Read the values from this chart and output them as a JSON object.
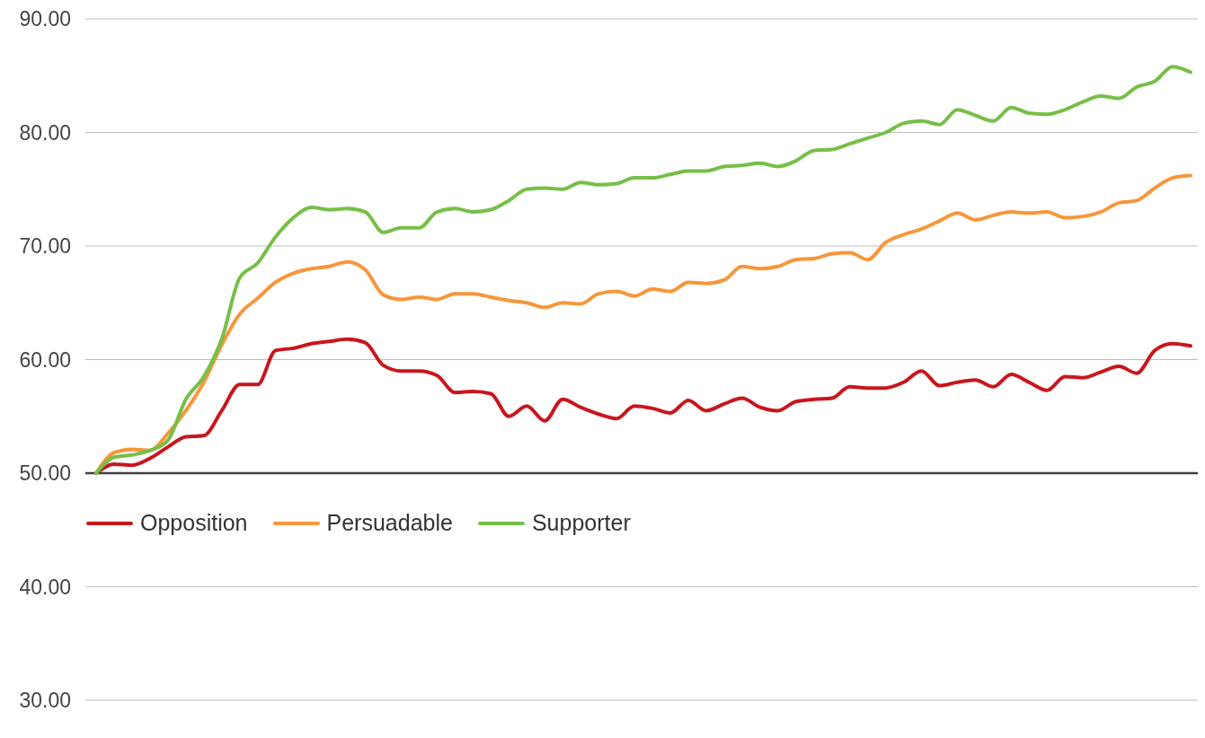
{
  "chart_data": {
    "type": "line",
    "categories": [
      null,
      null,
      null,
      null,
      null,
      null,
      null,
      null,
      null,
      null,
      null,
      null,
      null,
      null,
      null,
      null,
      null,
      null,
      null,
      null,
      null,
      null,
      null,
      null,
      null,
      null,
      null,
      null,
      null,
      null,
      null,
      null,
      null,
      null,
      null,
      null,
      null,
      null,
      null,
      null,
      null,
      null,
      null,
      null,
      null,
      null,
      null,
      null,
      null,
      null,
      null,
      null,
      null,
      null,
      null,
      null,
      null,
      null,
      null,
      null,
      null,
      null
    ],
    "series": [
      {
        "name": "Opposition",
        "color": "#c8161e",
        "values": [
          50.0,
          50.8,
          50.7,
          51.3,
          52.3,
          53.2,
          53.3,
          55.5,
          57.8,
          57.8,
          60.8,
          61.0,
          61.4,
          61.6,
          61.8,
          61.5,
          59.5,
          59.0,
          59.0,
          58.6,
          57.1,
          57.2,
          57.0,
          55.0,
          55.9,
          54.6,
          56.5,
          55.8,
          55.2,
          54.8,
          55.9,
          55.7,
          55.3,
          56.4,
          55.5,
          56.1,
          56.6,
          55.8,
          55.5,
          56.3,
          56.5,
          56.6,
          57.6,
          57.5,
          57.5,
          58.0,
          59.0,
          57.7,
          58.0,
          58.2,
          57.6,
          58.7,
          58.0,
          57.3,
          58.5,
          58.4,
          58.9,
          59.4,
          58.8,
          60.8,
          61.4,
          61.2
        ]
      },
      {
        "name": "Persuadable",
        "color": "#f7963a",
        "values": [
          50.0,
          51.8,
          52.1,
          52.0,
          53.5,
          55.5,
          58.0,
          61.3,
          64.0,
          65.4,
          66.8,
          67.6,
          68.0,
          68.2,
          68.6,
          67.9,
          65.7,
          65.3,
          65.5,
          65.3,
          65.8,
          65.8,
          65.5,
          65.2,
          65.0,
          64.6,
          65.0,
          64.9,
          65.8,
          66.0,
          65.6,
          66.2,
          66.0,
          66.8,
          66.7,
          67.0,
          68.2,
          68.0,
          68.2,
          68.8,
          68.9,
          69.3,
          69.4,
          68.8,
          70.3,
          71.0,
          71.5,
          72.2,
          72.9,
          72.3,
          72.7,
          73.0,
          72.9,
          73.0,
          72.5,
          72.6,
          73.0,
          73.8,
          74.0,
          75.1,
          76.0,
          76.2
        ]
      },
      {
        "name": "Supporter",
        "color": "#76bf47",
        "values": [
          50.0,
          51.4,
          51.6,
          52.0,
          52.9,
          56.5,
          58.5,
          61.8,
          67.2,
          68.5,
          70.8,
          72.5,
          73.4,
          73.2,
          73.3,
          73.0,
          71.2,
          71.6,
          71.6,
          73.0,
          73.3,
          73.0,
          73.2,
          74.0,
          75.0,
          75.1,
          75.0,
          75.6,
          75.4,
          75.5,
          76.0,
          76.0,
          76.3,
          76.6,
          76.6,
          77.0,
          77.1,
          77.3,
          77.0,
          77.5,
          78.4,
          78.5,
          79.0,
          79.5,
          80.0,
          80.8,
          81.0,
          80.7,
          82.0,
          81.5,
          81.0,
          82.2,
          81.7,
          81.6,
          82.0,
          82.7,
          83.2,
          83.0,
          84.0,
          84.5,
          85.8,
          85.3
        ]
      }
    ],
    "ylim": [
      30,
      90
    ],
    "yticks": [
      {
        "value": 30,
        "label": "30.00"
      },
      {
        "value": 40,
        "label": "40.00"
      },
      {
        "value": 50,
        "label": "50.00"
      },
      {
        "value": 60,
        "label": "60.00"
      },
      {
        "value": 70,
        "label": "70.00"
      },
      {
        "value": 80,
        "label": "80.00"
      },
      {
        "value": 90,
        "label": "90.00"
      }
    ],
    "ref_lines": [
      {
        "axis": "y",
        "value": 50,
        "color": "#404040"
      }
    ],
    "grid": "y",
    "legend": "left",
    "tick_labels": "y",
    "marker": "none",
    "line_style": "solid"
  }
}
